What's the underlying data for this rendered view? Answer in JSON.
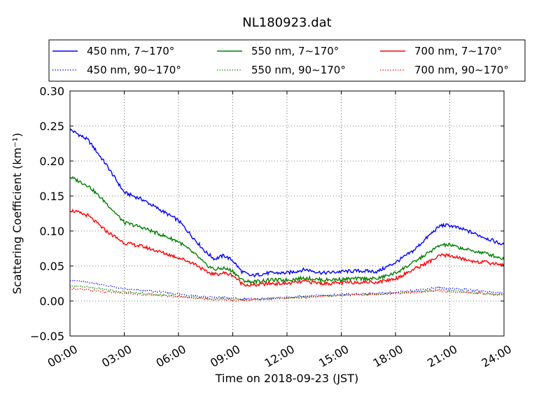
{
  "chart_data": {
    "type": "line",
    "title": "NL180923.dat",
    "xlabel": "Time on 2018-09-23 (JST)",
    "ylabel": "Scattering Coefficient (km⁻¹)",
    "xlim": [
      "00:00",
      "24:00"
    ],
    "ylim": [
      -0.05,
      0.3
    ],
    "grid": true,
    "legend_position": "top, above plot",
    "x_tick_labels": [
      "00:00",
      "03:00",
      "06:00",
      "09:00",
      "12:00",
      "15:00",
      "18:00",
      "21:00",
      "24:00"
    ],
    "y_tick_labels": [
      "−0.05",
      "0.00",
      "0.05",
      "0.10",
      "0.15",
      "0.20",
      "0.25",
      "0.30"
    ],
    "x_hours": [
      0,
      1,
      2,
      3,
      4,
      5,
      6,
      7,
      7.5,
      8,
      8.5,
      9,
      9.5,
      10,
      11,
      12,
      13,
      14,
      15,
      16,
      17,
      18,
      19,
      20,
      20.5,
      21,
      22,
      23,
      24
    ],
    "series": [
      {
        "name": "450 nm, 7∼170°",
        "color": "#0000ff",
        "style": "solid",
        "values": [
          0.245,
          0.23,
          0.195,
          0.155,
          0.145,
          0.13,
          0.115,
          0.085,
          0.07,
          0.06,
          0.065,
          0.058,
          0.042,
          0.036,
          0.04,
          0.04,
          0.045,
          0.04,
          0.042,
          0.043,
          0.042,
          0.055,
          0.072,
          0.097,
          0.108,
          0.108,
          0.1,
          0.09,
          0.08
        ]
      },
      {
        "name": "450 nm, 90∼170°",
        "color": "#0000ff",
        "style": "dotted",
        "values": [
          0.03,
          0.027,
          0.022,
          0.017,
          0.015,
          0.013,
          0.01,
          0.007,
          0.006,
          0.005,
          0.005,
          0.004,
          0.003,
          0.003,
          0.004,
          0.005,
          0.007,
          0.008,
          0.009,
          0.01,
          0.011,
          0.012,
          0.015,
          0.018,
          0.019,
          0.018,
          0.016,
          0.014,
          0.011
        ]
      },
      {
        "name": "550 nm, 7∼170°",
        "color": "#008000",
        "style": "solid",
        "values": [
          0.177,
          0.165,
          0.14,
          0.112,
          0.105,
          0.095,
          0.085,
          0.065,
          0.052,
          0.045,
          0.047,
          0.043,
          0.03,
          0.027,
          0.03,
          0.03,
          0.033,
          0.03,
          0.031,
          0.032,
          0.032,
          0.04,
          0.055,
          0.072,
          0.08,
          0.08,
          0.073,
          0.068,
          0.06
        ]
      },
      {
        "name": "550 nm, 90∼170°",
        "color": "#008000",
        "style": "dotted",
        "values": [
          0.022,
          0.02,
          0.016,
          0.013,
          0.011,
          0.009,
          0.007,
          0.005,
          0.004,
          0.003,
          0.003,
          0.002,
          0.002,
          0.002,
          0.003,
          0.004,
          0.006,
          0.007,
          0.008,
          0.009,
          0.01,
          0.011,
          0.013,
          0.015,
          0.016,
          0.015,
          0.013,
          0.011,
          0.009
        ]
      },
      {
        "name": "700 nm, 7∼170°",
        "color": "#ff0000",
        "style": "solid",
        "values": [
          0.13,
          0.122,
          0.1,
          0.083,
          0.078,
          0.07,
          0.062,
          0.052,
          0.042,
          0.038,
          0.04,
          0.037,
          0.025,
          0.022,
          0.025,
          0.025,
          0.028,
          0.025,
          0.026,
          0.027,
          0.027,
          0.032,
          0.045,
          0.058,
          0.065,
          0.065,
          0.058,
          0.055,
          0.052
        ]
      },
      {
        "name": "700 nm, 90∼170°",
        "color": "#ff0000",
        "style": "dotted",
        "values": [
          0.018,
          0.016,
          0.013,
          0.011,
          0.009,
          0.008,
          0.006,
          0.004,
          0.003,
          0.002,
          0.002,
          0.001,
          0.001,
          0.002,
          0.003,
          0.004,
          0.005,
          0.007,
          0.008,
          0.009,
          0.01,
          0.011,
          0.012,
          0.014,
          0.014,
          0.013,
          0.012,
          0.01,
          0.008
        ]
      }
    ]
  }
}
